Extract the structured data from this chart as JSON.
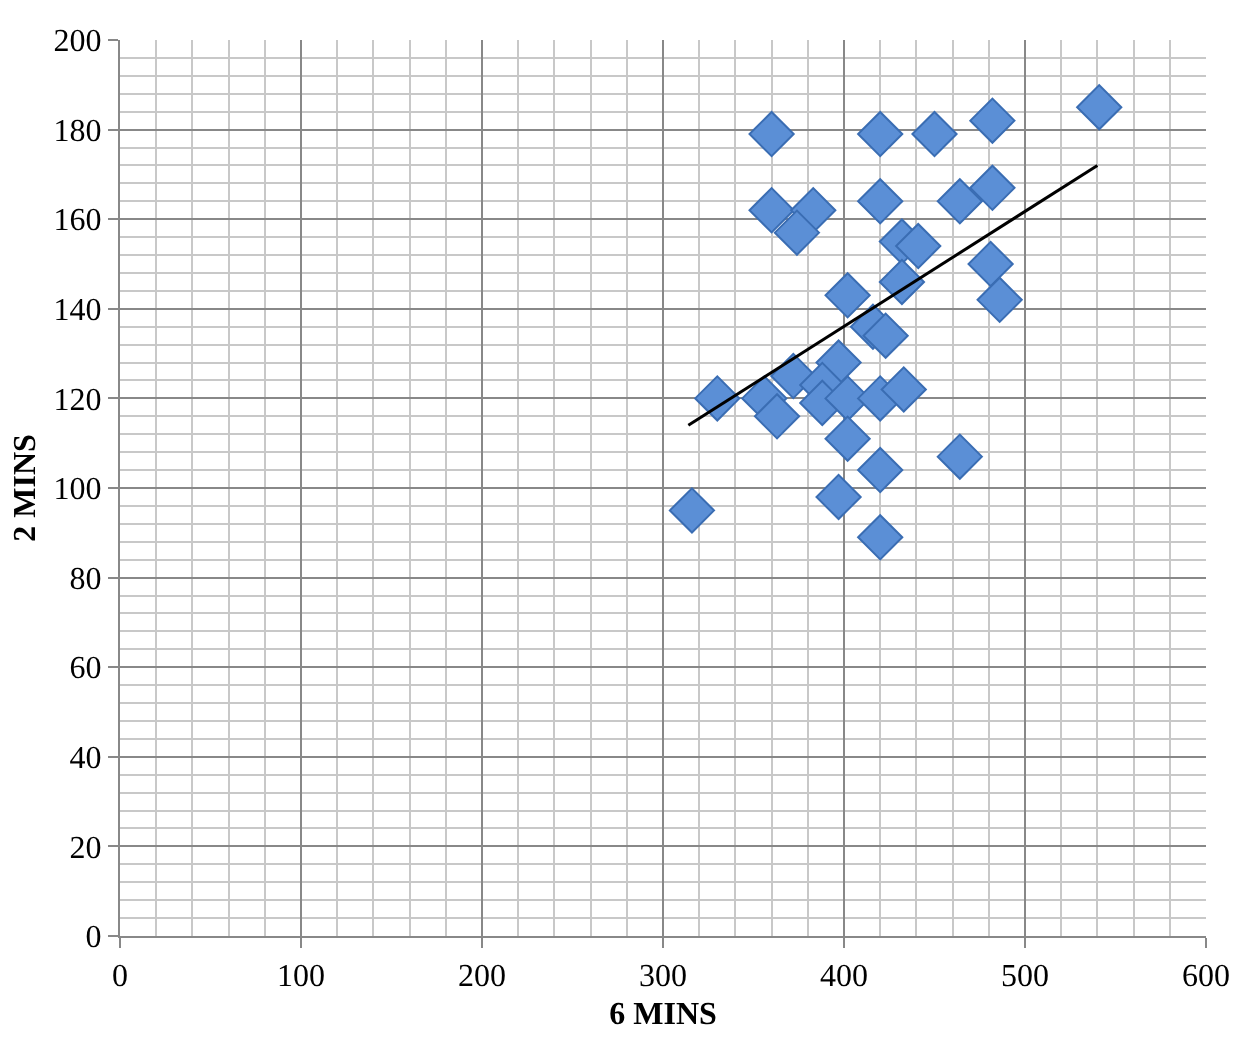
{
  "chart_data": {
    "type": "scatter",
    "xlabel": "6 MINS",
    "ylabel": "2 MINS",
    "xlim": [
      0,
      600
    ],
    "xticks": [
      0,
      100,
      200,
      300,
      400,
      500,
      600
    ],
    "ylim": [
      0,
      200
    ],
    "yticks": [
      0,
      20,
      40,
      60,
      80,
      100,
      120,
      140,
      160,
      180,
      200
    ],
    "grid": true,
    "marker": "diamond",
    "series": [
      {
        "color": "#5b8fd6",
        "x": [
          360,
          420,
          450,
          482,
          541,
          360,
          383,
          374,
          420,
          464,
          482,
          432,
          441,
          481,
          486,
          402,
          432,
          416,
          423,
          397,
          372,
          388,
          330,
          356,
          363,
          388,
          402,
          420,
          433,
          402,
          420,
          464,
          397,
          316,
          420
        ],
        "values": [
          179,
          179,
          179,
          182,
          185,
          162,
          162,
          157,
          164,
          164,
          167,
          155,
          154,
          150,
          142,
          143,
          146,
          136,
          134,
          128,
          125,
          123,
          120,
          120,
          116,
          119,
          120,
          120,
          122,
          111,
          104,
          107,
          98,
          95,
          89
        ]
      },
      {
        "type": "line",
        "color": "#000000",
        "marker": "none",
        "x": [
          314,
          540
        ],
        "values": [
          114,
          172
        ]
      }
    ]
  }
}
